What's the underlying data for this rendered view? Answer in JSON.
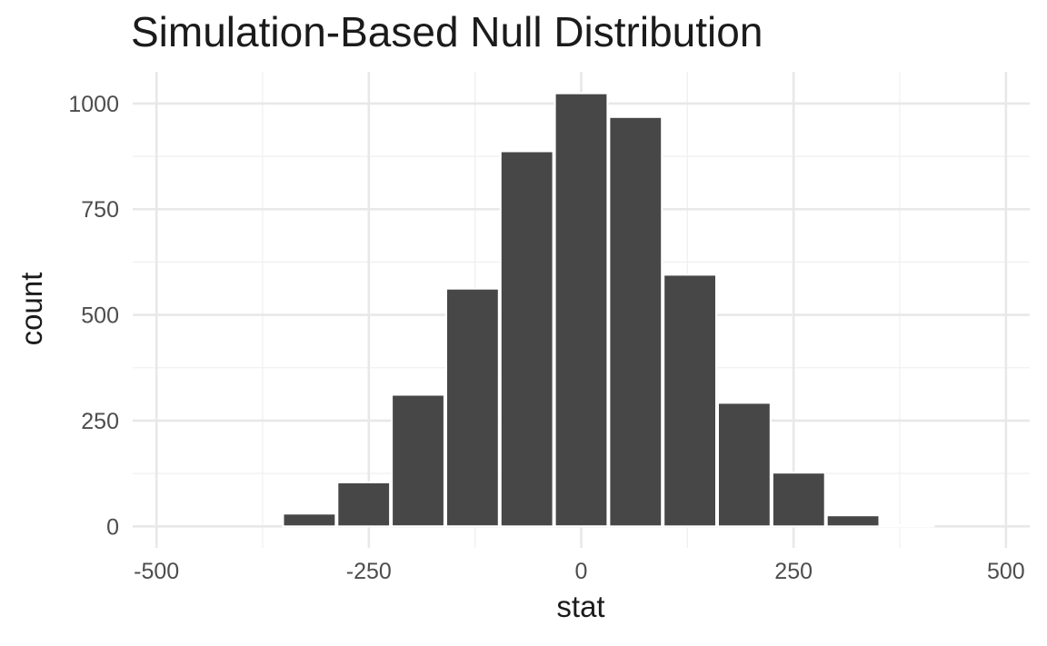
{
  "chart_data": {
    "type": "bar",
    "subtype": "histogram",
    "title": "Simulation-Based Null Distribution",
    "xlabel": "stat",
    "ylabel": "count",
    "bin_centers": [
      -320,
      -256,
      -192,
      -128,
      -64,
      0,
      64,
      128,
      192,
      256,
      320,
      384
    ],
    "binwidth": 64,
    "values": [
      30,
      104,
      311,
      562,
      887,
      1024,
      968,
      595,
      292,
      127,
      26,
      3
    ],
    "x_ticks": [
      -500,
      -250,
      0,
      250,
      500
    ],
    "x_tick_labels": [
      "-500",
      "-250",
      "0",
      "250",
      "500"
    ],
    "x_minor_ticks": [
      -375,
      -125,
      125,
      375
    ],
    "y_ticks": [
      0,
      250,
      500,
      750,
      1000
    ],
    "y_tick_labels": [
      "0",
      "250",
      "500",
      "750",
      "1000"
    ],
    "y_minor_ticks": [
      125,
      375,
      625,
      875
    ],
    "xlim": [
      -528,
      528
    ],
    "ylim": [
      -51,
      1075
    ],
    "grid": true,
    "legend": false
  },
  "style": {
    "background": "#FFFFFF",
    "bar_fill": "#474747",
    "bar_outline": "#FFFFFF",
    "grid_major_color": "#E8E8E8",
    "grid_minor_color": "#F0F0F0",
    "tick_label_color": "#4D4D4D",
    "title_color": "#1B1B1B",
    "axis_title_color": "#1B1B1B"
  }
}
